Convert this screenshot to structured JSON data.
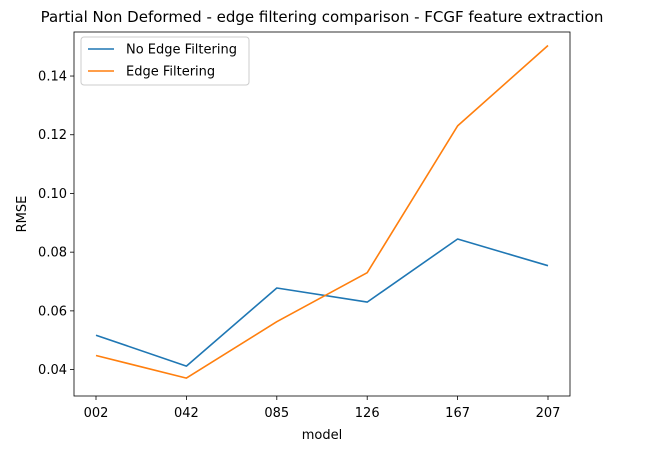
{
  "chart_data": {
    "type": "line",
    "title": "Partial Non Deformed - edge filtering comparison - FCGF feature extraction",
    "xlabel": "model",
    "ylabel": "RMSE",
    "categories": [
      "002",
      "042",
      "085",
      "126",
      "167",
      "207"
    ],
    "ylim": [
      0.031,
      0.155
    ],
    "yticks": [
      "0.04",
      "0.06",
      "0.08",
      "0.10",
      "0.12",
      "0.14"
    ],
    "grid": false,
    "legend_position": "top-left",
    "series": [
      {
        "name": "No Edge Filtering",
        "color": "#1f77b4",
        "values": [
          0.0517,
          0.0412,
          0.0678,
          0.063,
          0.0845,
          0.0754
        ]
      },
      {
        "name": "Edge Filtering",
        "color": "#ff7f0e",
        "values": [
          0.0448,
          0.0371,
          0.0563,
          0.073,
          0.123,
          0.1504
        ]
      }
    ]
  }
}
